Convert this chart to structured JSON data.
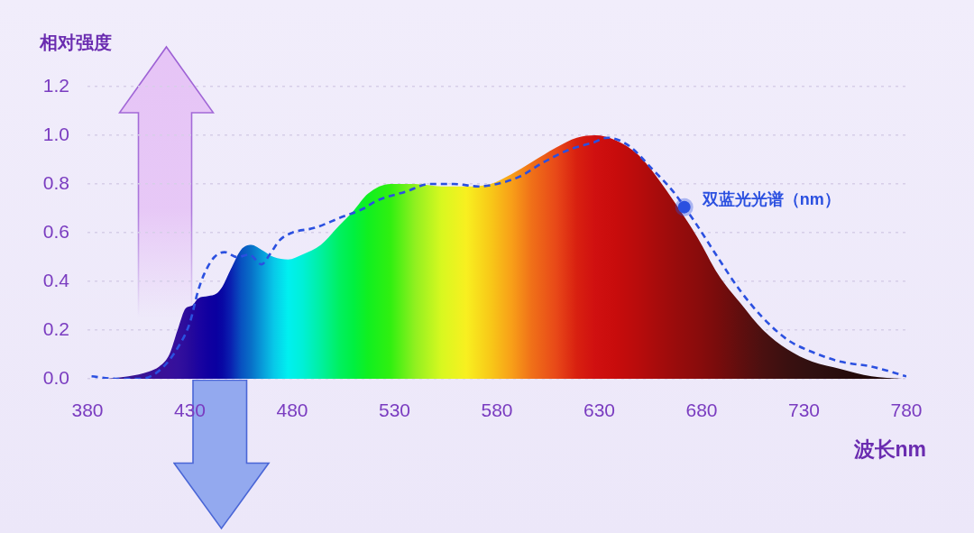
{
  "chart_data": {
    "type": "area",
    "xlabel": "波长nm",
    "ylabel": "相对强度",
    "xlim": [
      380,
      780
    ],
    "xticks": [
      380,
      430,
      480,
      530,
      580,
      630,
      680,
      730,
      780
    ],
    "ylim": [
      0,
      1.2
    ],
    "yticks": [
      {
        "value": 0,
        "label": "0.0"
      },
      0.2,
      0.4,
      0.6,
      0.8,
      {
        "value": 1,
        "label": "1.0"
      },
      1.2
    ],
    "grid": "y",
    "marker": "none",
    "series": [
      {
        "type": "area",
        "x": [
          390,
          400,
          410,
          415,
          420,
          424,
          428,
          431,
          434,
          439,
          443,
          446,
          450,
          455,
          460,
          465,
          471,
          478,
          485,
          494,
          503,
          510,
          517,
          528,
          540,
          553,
          565,
          577,
          587,
          597,
          609,
          619,
          628,
          638,
          649,
          658,
          668,
          678,
          688,
          699,
          710,
          722,
          734,
          748,
          763,
          778
        ],
        "values": [
          0,
          0.01,
          0.03,
          0.05,
          0.1,
          0.2,
          0.29,
          0.3,
          0.33,
          0.34,
          0.35,
          0.38,
          0.45,
          0.53,
          0.55,
          0.53,
          0.5,
          0.49,
          0.51,
          0.55,
          0.63,
          0.69,
          0.76,
          0.8,
          0.8,
          0.79,
          0.79,
          0.8,
          0.84,
          0.89,
          0.95,
          0.99,
          1,
          0.98,
          0.92,
          0.83,
          0.71,
          0.58,
          0.43,
          0.31,
          0.2,
          0.12,
          0.07,
          0.04,
          0.01,
          0
        ],
        "colors": [
          "#3a1a8c",
          "#3a1590",
          "#3a1296",
          "#3a1096",
          "#38109a",
          "#34109c",
          "#2c0c9c",
          "#24089c",
          "#1c04a0",
          "#1000a0",
          "#0a00a0",
          "#0808a4",
          "#0a20b0",
          "#0850c0",
          "#0870c8",
          "#0898d8",
          "#08c8e8",
          "#00f0f0",
          "#00f0d8",
          "#00f0a0",
          "#00f060",
          "#00f040",
          "#10f020",
          "#30f010",
          "#90f020",
          "#d8f820",
          "#f8f020",
          "#f8c818",
          "#f8a018",
          "#f07018",
          "#e84818",
          "#d82010",
          "#d01010",
          "#c80c0c",
          "#b80c0c",
          "#a80c0c",
          "#980c0c",
          "#8a0c0c",
          "#780c0c",
          "#600e0e",
          "#4a1010",
          "#3a1010",
          "#301010",
          "#280c0c",
          "#200808",
          "#200808"
        ]
      },
      {
        "type": "line",
        "name": "双蓝光光谱（nm）",
        "color": "#2b50e0",
        "line_style": "dashed",
        "x": [
          382,
          394,
          406,
          416,
          425,
          430,
          434,
          437,
          442,
          447,
          453,
          459,
          465,
          469,
          474,
          480,
          491,
          503,
          515,
          521,
          536,
          547,
          559,
          571,
          580,
          591,
          603,
          615,
          627,
          634,
          644,
          656,
          666,
          677,
          687,
          699,
          710,
          722,
          734,
          748,
          763,
          780
        ],
        "values": [
          0.01,
          0,
          0,
          0.04,
          0.14,
          0.23,
          0.36,
          0.43,
          0.5,
          0.52,
          0.5,
          0.51,
          0.47,
          0.51,
          0.57,
          0.6,
          0.62,
          0.66,
          0.7,
          0.73,
          0.77,
          0.8,
          0.8,
          0.79,
          0.8,
          0.83,
          0.89,
          0.94,
          0.97,
          0.99,
          0.96,
          0.86,
          0.77,
          0.64,
          0.51,
          0.36,
          0.25,
          0.16,
          0.11,
          0.07,
          0.05,
          0.01
        ]
      }
    ]
  }
}
